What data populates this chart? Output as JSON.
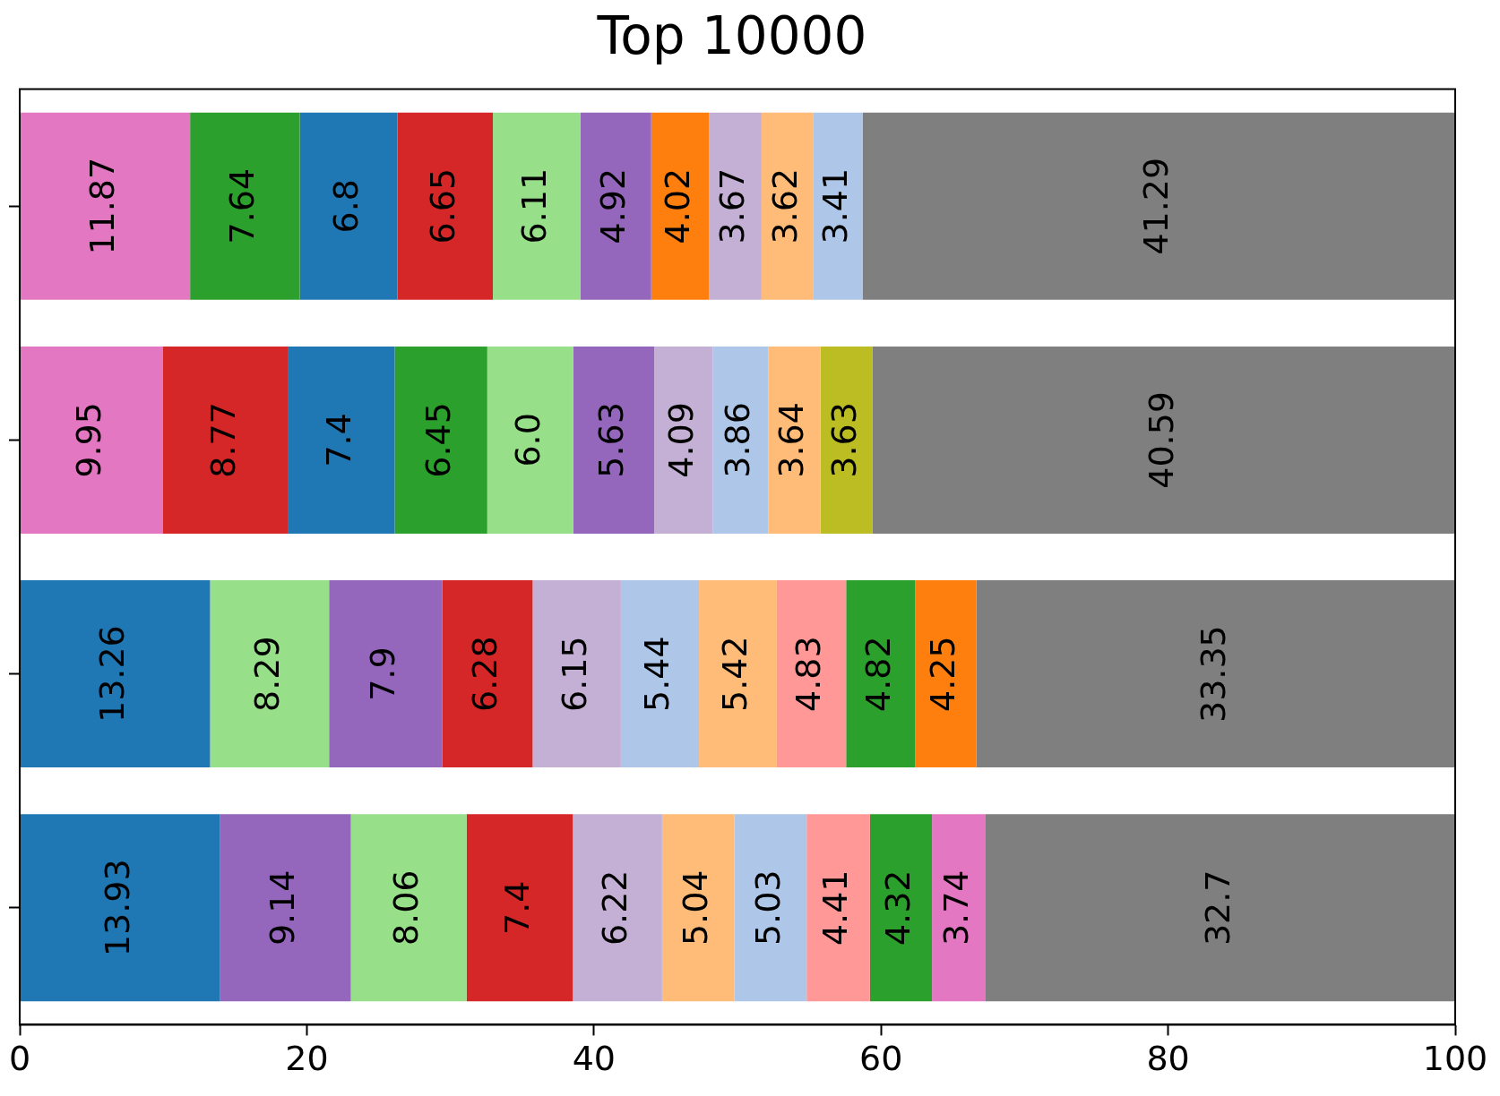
{
  "chart_data": {
    "type": "bar",
    "orientation": "horizontal",
    "stacked": true,
    "title": "Top 10000",
    "categories": [
      null,
      null,
      null,
      null
    ],
    "series": [
      {
        "colors": [
          "#e377c2",
          "#e377c2",
          "#1f77b4",
          "#1f77b4"
        ],
        "values": [
          11.87,
          9.95,
          13.26,
          13.93
        ],
        "value_labels": [
          "11.87",
          "9.95",
          "13.26",
          "13.93"
        ]
      },
      {
        "colors": [
          "#2ca02c",
          "#d62728",
          "#98df8a",
          "#9467bd"
        ],
        "values": [
          7.64,
          8.77,
          8.29,
          9.14
        ],
        "value_labels": [
          "7.64",
          "8.77",
          "8.29",
          "9.14"
        ]
      },
      {
        "colors": [
          "#1f77b4",
          "#1f77b4",
          "#9467bd",
          "#98df8a"
        ],
        "values": [
          6.8,
          7.4,
          7.9,
          8.06
        ],
        "value_labels": [
          "6.8",
          "7.4",
          "7.9",
          "8.06"
        ]
      },
      {
        "colors": [
          "#d62728",
          "#2ca02c",
          "#d62728",
          "#d62728"
        ],
        "values": [
          6.65,
          6.45,
          6.28,
          7.4
        ],
        "value_labels": [
          "6.65",
          "6.45",
          "6.28",
          "7.4"
        ]
      },
      {
        "colors": [
          "#98df8a",
          "#98df8a",
          "#c5b0d5",
          "#c5b0d5"
        ],
        "values": [
          6.11,
          6.0,
          6.15,
          6.22
        ],
        "value_labels": [
          "6.11",
          "6.0",
          "6.15",
          "6.22"
        ]
      },
      {
        "colors": [
          "#9467bd",
          "#9467bd",
          "#aec7e8",
          "#ffbb78"
        ],
        "values": [
          4.92,
          5.63,
          5.44,
          5.04
        ],
        "value_labels": [
          "4.92",
          "5.63",
          "5.44",
          "5.04"
        ]
      },
      {
        "colors": [
          "#ff7f0e",
          "#c5b0d5",
          "#ffbb78",
          "#aec7e8"
        ],
        "values": [
          4.02,
          4.09,
          5.42,
          5.03
        ],
        "value_labels": [
          "4.02",
          "4.09",
          "5.42",
          "5.03"
        ]
      },
      {
        "colors": [
          "#c5b0d5",
          "#aec7e8",
          "#ff9896",
          "#ff9896"
        ],
        "values": [
          3.67,
          3.86,
          4.83,
          4.41
        ],
        "value_labels": [
          "3.67",
          "3.86",
          "4.83",
          "4.41"
        ]
      },
      {
        "colors": [
          "#ffbb78",
          "#ffbb78",
          "#2ca02c",
          "#2ca02c"
        ],
        "values": [
          3.62,
          3.64,
          4.82,
          4.32
        ],
        "value_labels": [
          "3.62",
          "3.64",
          "4.82",
          "4.32"
        ]
      },
      {
        "colors": [
          "#aec7e8",
          "#bcbd22",
          "#ff7f0e",
          "#e377c2"
        ],
        "values": [
          3.41,
          3.63,
          4.25,
          3.74
        ],
        "value_labels": [
          "3.41",
          "3.63",
          "4.25",
          "3.74"
        ]
      },
      {
        "colors": [
          "#7f7f7f",
          "#7f7f7f",
          "#7f7f7f",
          "#7f7f7f"
        ],
        "values": [
          41.29,
          40.59,
          33.35,
          32.7
        ],
        "value_labels": [
          "41.29",
          "40.59",
          "33.35",
          "32.7"
        ]
      }
    ],
    "xlim": [
      0,
      100
    ],
    "xticks": [
      0,
      20,
      40,
      60,
      80,
      100
    ],
    "tick_labels": "x",
    "grid": false,
    "legend": false
  }
}
